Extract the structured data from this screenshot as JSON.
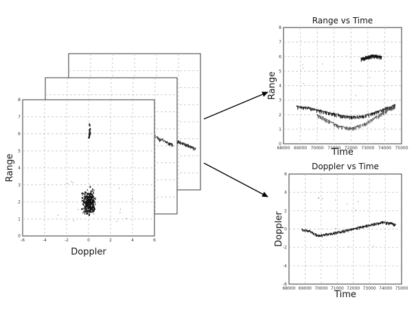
{
  "chart_data": [
    {
      "type": "scatter",
      "title": "",
      "xlabel": "Doppler",
      "ylabel": "Range",
      "xlim": [
        -6,
        6
      ],
      "ylim": [
        0,
        8
      ],
      "xticks": [
        "-6",
        "-4",
        "-2",
        "0",
        "2",
        "4",
        "6"
      ],
      "yticks": [
        "0",
        "1",
        "2",
        "3",
        "4",
        "5",
        "6",
        "7",
        "8"
      ],
      "grid": true,
      "stacked_frames": 3,
      "clusters": [
        {
          "x": 0.0,
          "y": 2.0,
          "spread_x": 0.5,
          "spread_y": 0.55,
          "count": 320
        },
        {
          "x": 0.05,
          "y": 6.1,
          "spread_x": 0.06,
          "spread_y": 0.35,
          "count": 18
        }
      ]
    },
    {
      "type": "scatter",
      "title": "Range vs Time",
      "xlabel": "Time",
      "ylabel": "Range",
      "xlim": [
        68000,
        75000
      ],
      "ylim": [
        0,
        8
      ],
      "xticks": [
        "68000",
        "69000",
        "70000",
        "71000",
        "72000",
        "73000",
        "74000",
        "75000"
      ],
      "yticks": [
        "0",
        "1",
        "2",
        "3",
        "4",
        "5",
        "6",
        "7",
        "8"
      ],
      "grid": true,
      "series": [
        {
          "x": [
            68800,
            69500,
            70200,
            71000,
            71800,
            72500,
            73200,
            73900,
            74600
          ],
          "values": [
            2.6,
            2.5,
            2.3,
            2.1,
            1.9,
            1.9,
            2.1,
            2.4,
            2.7
          ]
        },
        {
          "x": [
            70000,
            70700,
            71400,
            72100,
            72800,
            73500,
            74200,
            74600
          ],
          "values": [
            2.0,
            1.6,
            1.2,
            1.1,
            1.4,
            1.9,
            2.4,
            2.6
          ]
        },
        {
          "x": [
            72600,
            72900,
            73200,
            73500,
            73800
          ],
          "values": [
            5.9,
            6.0,
            6.1,
            6.1,
            6.0
          ]
        }
      ]
    },
    {
      "type": "scatter",
      "title": "Doppler vs Time",
      "xlabel": "Time",
      "ylabel": "Doppler",
      "xlim": [
        68000,
        75000
      ],
      "ylim": [
        -6,
        6
      ],
      "xticks": [
        "68000",
        "69000",
        "70000",
        "71000",
        "72000",
        "73000",
        "74000",
        "75000"
      ],
      "yticks": [
        "-6",
        "-4",
        "-2",
        "0",
        "2",
        "4",
        "6"
      ],
      "grid": true,
      "series": [
        {
          "x": [
            68800,
            69300,
            69800,
            70300,
            70800,
            71300,
            71800,
            72300,
            72800,
            73300,
            73800,
            74300,
            74600
          ],
          "values": [
            0.0,
            -0.2,
            -0.7,
            -0.5,
            -0.4,
            -0.2,
            0.0,
            0.2,
            0.4,
            0.6,
            0.8,
            0.7,
            0.5
          ]
        }
      ]
    }
  ]
}
